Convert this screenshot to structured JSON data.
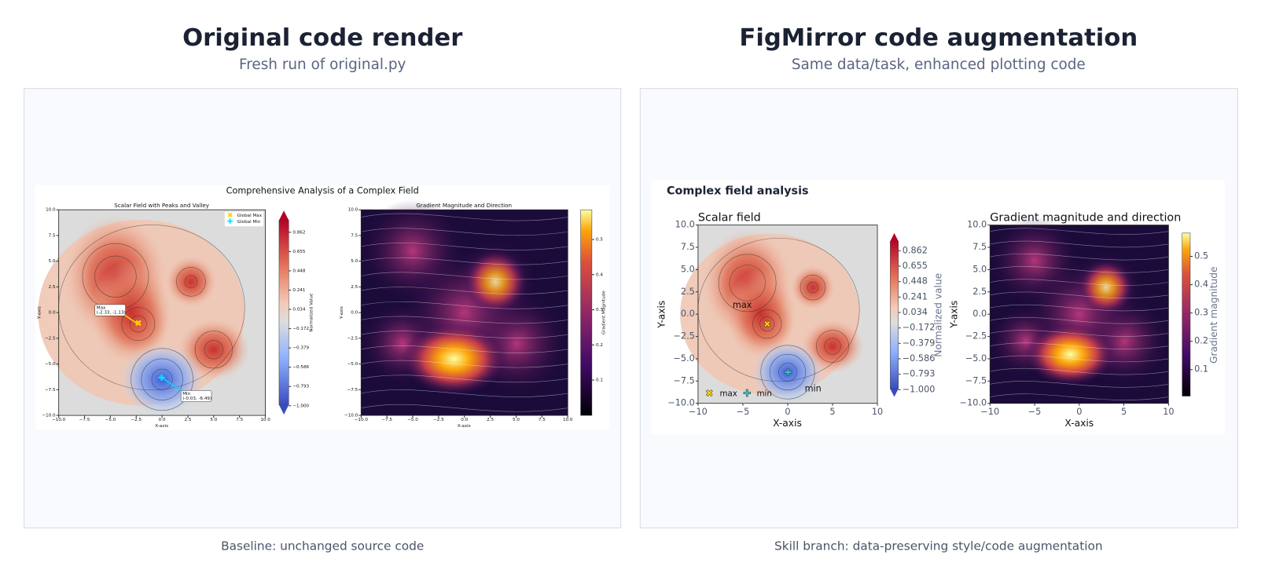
{
  "left": {
    "title": "Original code render",
    "subtitle": "Fresh run of original.py",
    "caption": "Baseline: unchanged source code",
    "figure": {
      "suptitle": "Comprehensive Analysis of a Complex Field",
      "scalar": {
        "title": "Scalar Field with Peaks and Valley",
        "xlabel": "X-axis",
        "ylabel": "Y-axis",
        "xticks": [
          "−10.0",
          "−7.5",
          "−5.0",
          "−2.5",
          "0.0",
          "2.5",
          "5.0",
          "7.5",
          "10.0"
        ],
        "yticks": [
          "10.0",
          "7.5",
          "5.0",
          "2.5",
          "0.0",
          "−2.5",
          "−5.0",
          "−7.5",
          "−10.0"
        ],
        "legend": [
          "Global Max",
          "Global Min"
        ],
        "max_annotation": [
          "Max",
          "(-2.33, -1.13)"
        ],
        "min_annotation": [
          "Min",
          "(-0.03, -6.49)"
        ]
      },
      "colorbar": {
        "label": "Normalized Value",
        "ticks": [
          "0.862",
          "0.655",
          "0.448",
          "0.241",
          "0.034",
          "−0.172",
          "−0.379",
          "−0.586",
          "−0.793",
          "−1.000"
        ]
      },
      "gradient": {
        "title": "Gradient Magnitude and Direction",
        "xlabel": "X-axis",
        "ylabel": "Y-axis",
        "xticks": [
          "−10.0",
          "−7.5",
          "−5.0",
          "−2.5",
          "0.0",
          "2.5",
          "5.0",
          "7.5",
          "10.0"
        ],
        "yticks": [
          "10.0",
          "7.5",
          "5.0",
          "2.5",
          "0.0",
          "−2.5",
          "−5.0",
          "−7.5",
          "−10.0"
        ]
      },
      "colorbar2": {
        "label": "Gradient Magnitude",
        "ticks": [
          "0.5",
          "0.4",
          "0.3",
          "0.2",
          "0.1"
        ]
      }
    }
  },
  "right": {
    "title": "FigMirror code augmentation",
    "subtitle": "Same data/task, enhanced plotting code",
    "caption": "Skill branch: data-preserving style/code augmentation",
    "figure": {
      "suptitle": "Complex field analysis",
      "scalar": {
        "title": "Scalar field",
        "xlabel": "X-axis",
        "ylabel": "Y-axis",
        "xticks": [
          "−10",
          "−5",
          "0",
          "5",
          "10"
        ],
        "yticks": [
          "10.0",
          "7.5",
          "5.0",
          "2.5",
          "0.0",
          "−2.5",
          "−5.0",
          "−7.5",
          "−10.0"
        ],
        "legend": [
          "max",
          "min"
        ],
        "max_annotation": [
          "max"
        ],
        "min_annotation": [
          "min"
        ]
      },
      "colorbar": {
        "label": "Normalized value",
        "ticks": [
          "0.862",
          "0.655",
          "0.448",
          "0.241",
          "0.034",
          "−0.172",
          "−0.379",
          "−0.586",
          "−0.793",
          "−1.000"
        ]
      },
      "gradient": {
        "title": "Gradient magnitude and direction",
        "xlabel": "X-axis",
        "ylabel": "Y-axis",
        "xticks": [
          "−10",
          "−5",
          "0",
          "5",
          "10"
        ],
        "yticks": [
          "10.0",
          "7.5",
          "5.0",
          "2.5",
          "0.0",
          "−2.5",
          "−5.0",
          "−7.5",
          "−10.0"
        ]
      },
      "colorbar2": {
        "label": "Gradient magnitude",
        "ticks": [
          "0.5",
          "0.4",
          "0.3",
          "0.2",
          "0.1"
        ]
      }
    }
  }
}
